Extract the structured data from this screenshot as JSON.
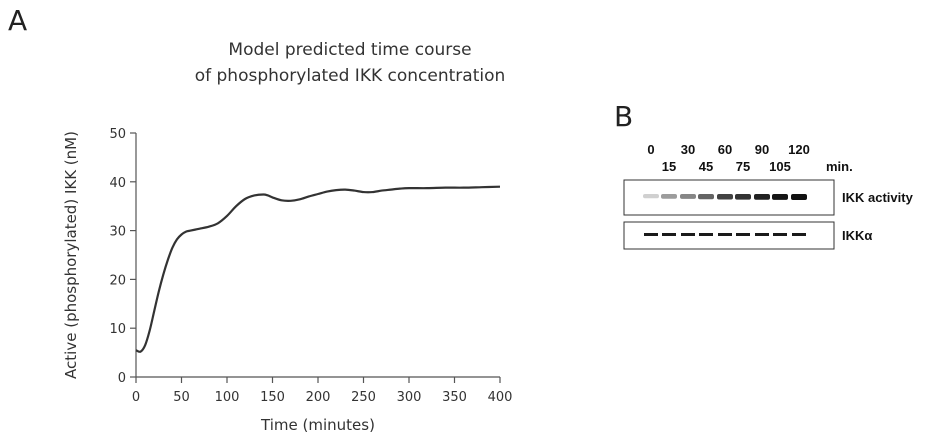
{
  "panels": {
    "a_letter": "A",
    "b_letter": "B"
  },
  "chart_data": {
    "type": "line",
    "title_lines": [
      "Model predicted time course",
      "of phosphorylated IKK concentration"
    ],
    "xlabel": "Time (minutes)",
    "ylabel": "Active (phosphorylated) IKK (nM)",
    "xlim": [
      0,
      400
    ],
    "ylim": [
      0,
      50
    ],
    "xticks": [
      0,
      50,
      100,
      150,
      200,
      250,
      300,
      350,
      400
    ],
    "yticks": [
      0,
      10,
      20,
      30,
      40,
      50
    ],
    "grid": false,
    "line_color": "#333333",
    "series": [
      {
        "x": [
          0,
          5,
          10,
          15,
          20,
          25,
          30,
          35,
          40,
          45,
          50,
          55,
          60,
          65,
          70,
          80,
          90,
          100,
          110,
          120,
          130,
          140,
          145,
          150,
          160,
          170,
          180,
          190,
          200,
          210,
          220,
          230,
          240,
          250,
          260,
          270,
          280,
          290,
          300,
          320,
          340,
          360,
          380,
          400
        ],
        "y": [
          5.5,
          5.2,
          6.5,
          9.5,
          13.5,
          17.5,
          21,
          24,
          26.5,
          28.2,
          29.2,
          29.8,
          30,
          30.2,
          30.4,
          30.8,
          31.5,
          33,
          35,
          36.5,
          37.2,
          37.4,
          37.2,
          36.8,
          36.2,
          36.1,
          36.4,
          37,
          37.5,
          38,
          38.3,
          38.4,
          38.2,
          37.9,
          37.9,
          38.2,
          38.4,
          38.6,
          38.7,
          38.7,
          38.8,
          38.8,
          38.9,
          39.0
        ]
      }
    ]
  },
  "blot": {
    "top_times": [
      "0",
      "30",
      "60",
      "90",
      "120"
    ],
    "bottom_times": [
      "15",
      "45",
      "75",
      "105"
    ],
    "unit": "min.",
    "band_labels": [
      "IKK activity",
      "IKKα"
    ],
    "activity_intensity": [
      0.12,
      0.35,
      0.45,
      0.6,
      0.75,
      0.82,
      0.9,
      0.95,
      0.97
    ]
  }
}
